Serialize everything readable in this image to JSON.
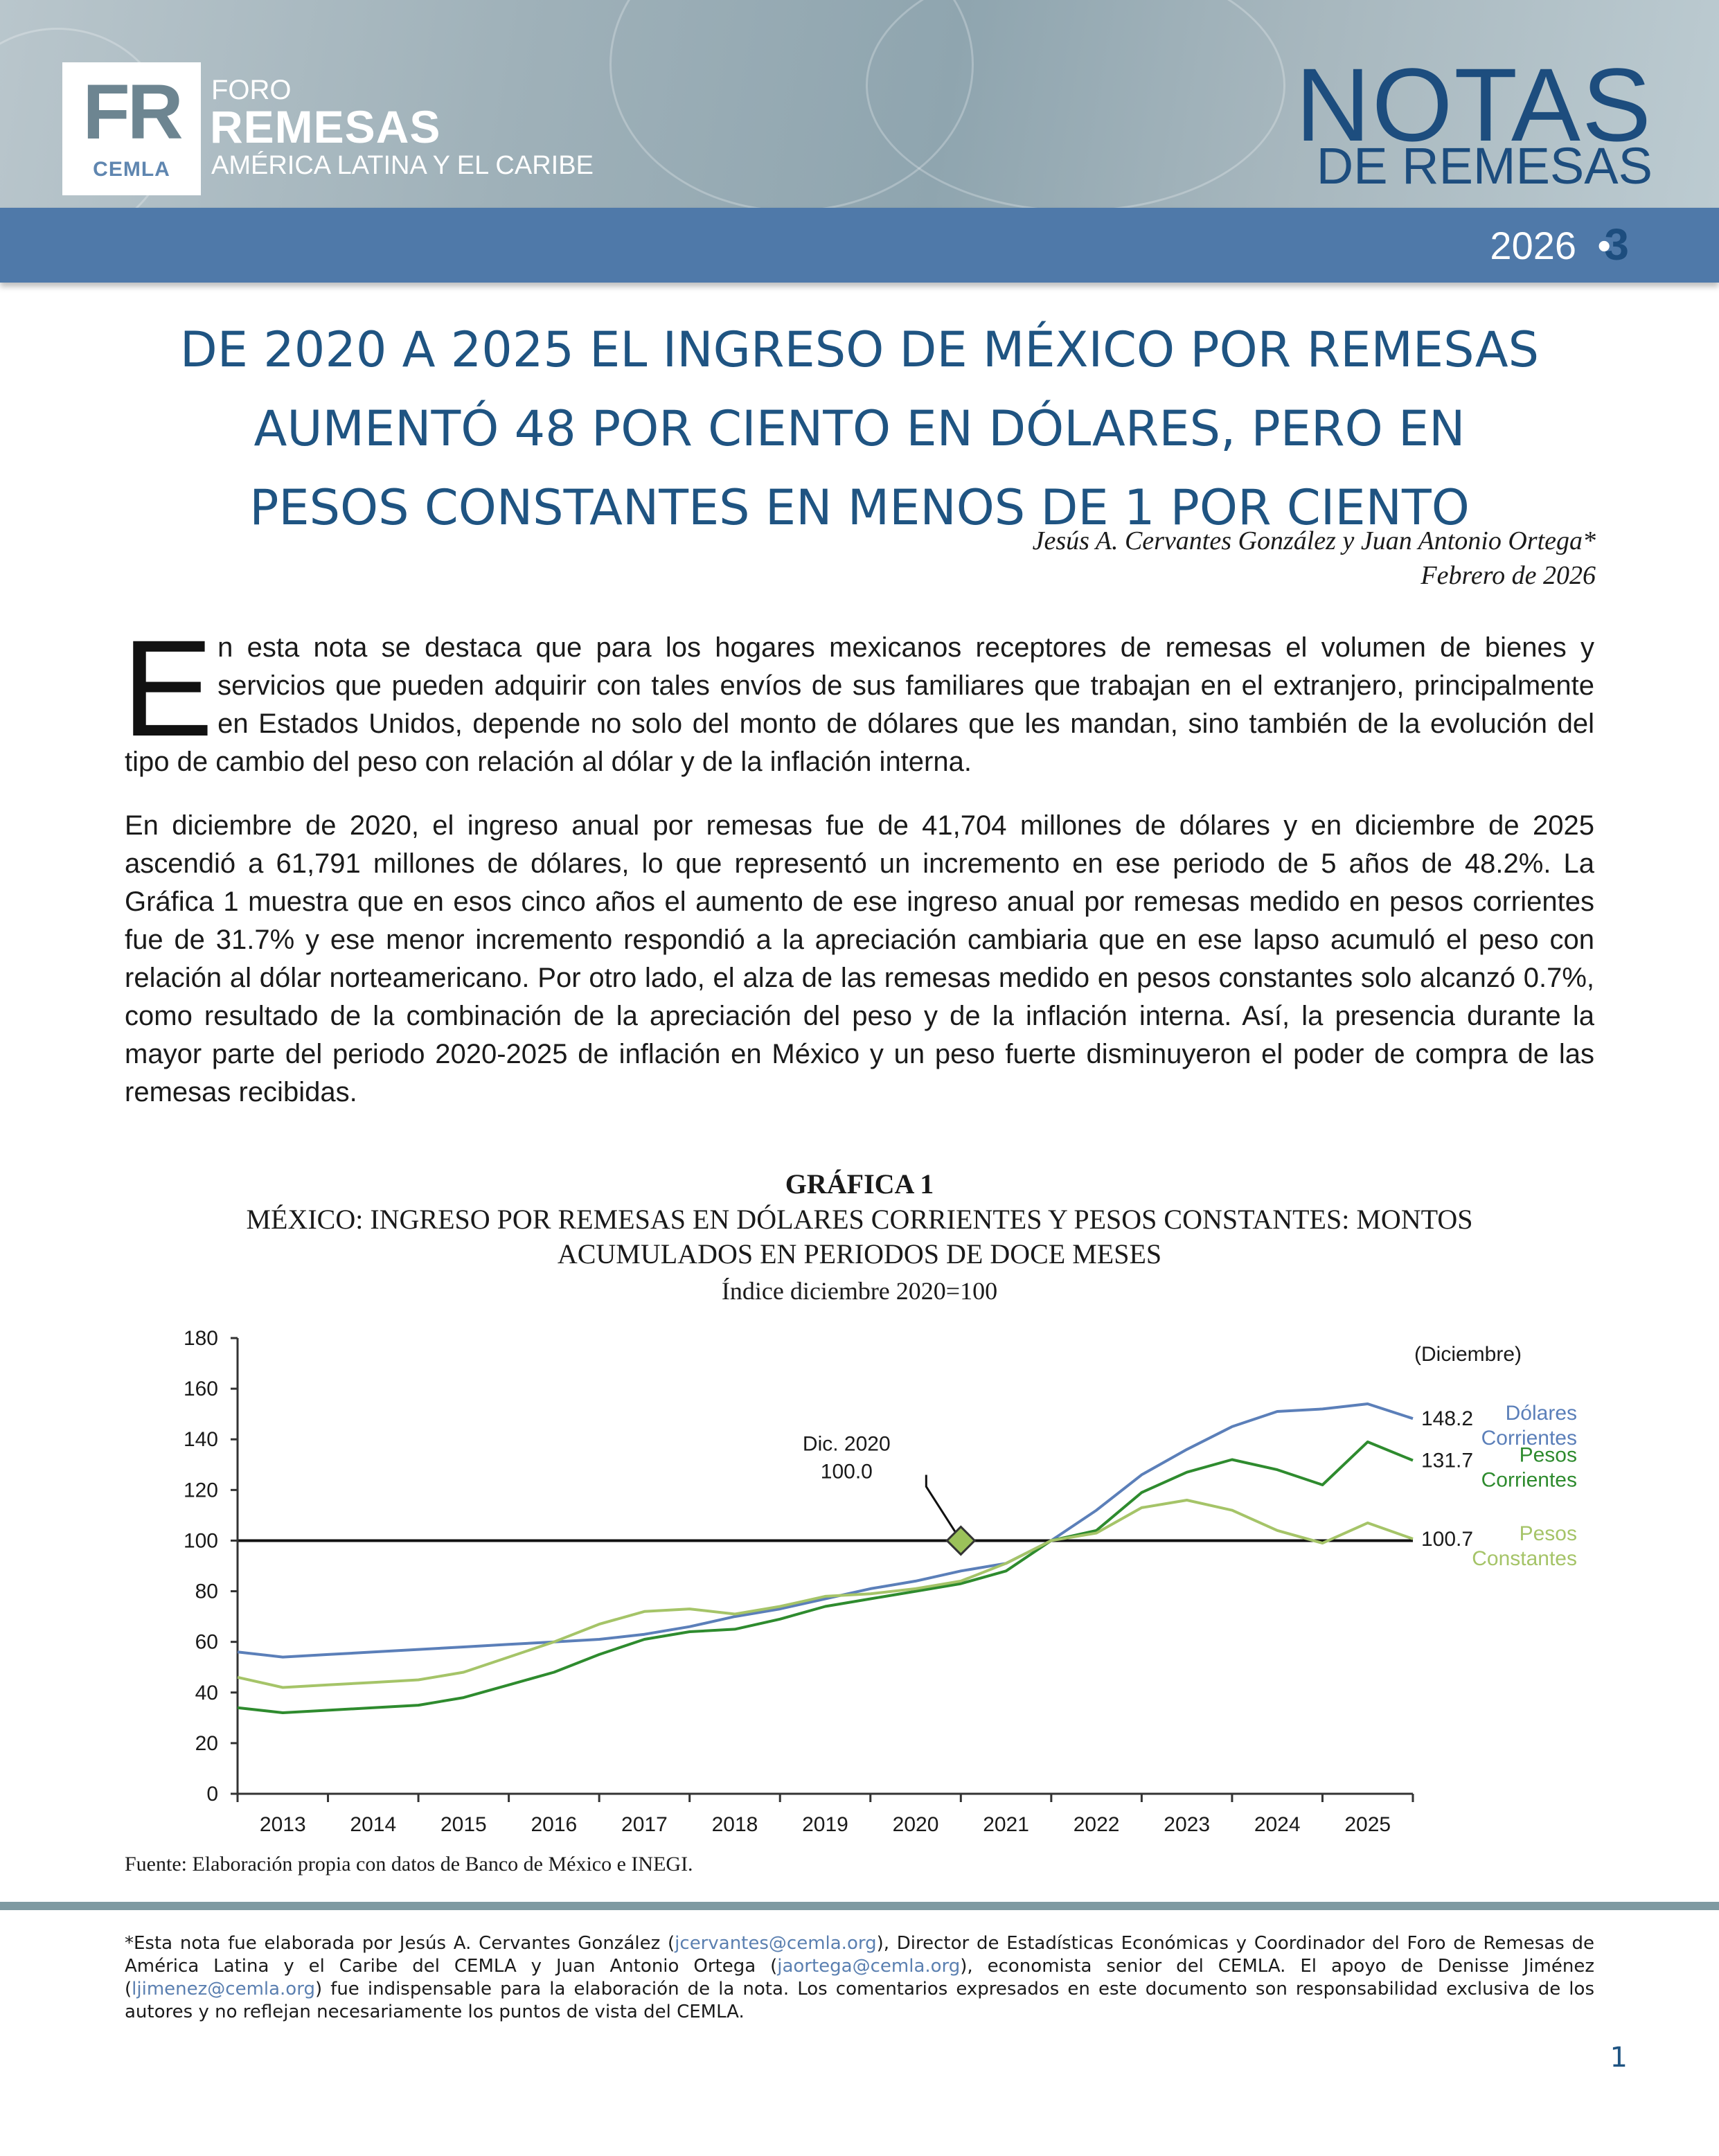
{
  "header": {
    "logo_fr": "FR",
    "logo_cemla": "CEMLA",
    "logo_foro": "FORO",
    "logo_remesas": "REMESAS",
    "logo_region": "AMÉRICA LATINA Y EL CARIBE",
    "series_title": "NOTAS",
    "series_subtitle": "DE REMESAS",
    "issue_year": "2026",
    "issue_bullet": "•",
    "issue_number": "3"
  },
  "article": {
    "title_lines": [
      "DE 2020 A 2025 EL INGRESO DE MÉXICO POR REMESAS",
      "AUMENTÓ 48 POR CIENTO EN DÓLARES, PERO EN",
      "PESOS CONSTANTES EN MENOS DE 1 POR CIENTO"
    ],
    "authors": "Jesús A. Cervantes González y Juan Antonio Ortega*",
    "date": "Febrero de 2026",
    "para1_dropcap": "E",
    "para1_rest": "n esta nota se destaca que para los hogares mexicanos receptores de remesas el volumen de bienes y servicios que pueden adquirir con tales envíos de sus familiares que trabajan en el extranjero, principalmente en Estados Unidos, depende no solo del monto de dólares que les mandan, sino también de la evolución del tipo de cambio del peso con relación al dólar y de la inflación interna.",
    "para2": "En diciembre de 2020, el ingreso anual por remesas fue de 41,704 millones de dólares y en diciembre de 2025 ascendió a 61,791 millones de dólares, lo que representó un incremento en ese periodo de 5 años de 48.2%. La Gráfica 1 muestra que en esos cinco años el aumento de ese ingreso anual por remesas medido en pesos corrientes fue de 31.7% y ese menor incremento respondió a la apreciación cambiaria que en ese lapso acumuló el peso con relación al dólar norteamericano. Por otro lado, el alza de las remesas medido en pesos constantes solo alcanzó 0.7%, como resultado de la combinación de la apreciación del peso y de la inflación interna. Así, la presencia durante la mayor parte del periodo 2020-2025 de inflación en México y un peso fuerte disminuyeron el poder de compra de las remesas recibidas."
  },
  "chart_label": "GRÁFICA 1",
  "chart_title": "MÉXICO: INGRESO POR REMESAS EN DÓLARES CORRIENTES Y PESOS CONSTANTES: MONTOS ACUMULADOS EN PERIODOS DE DOCE MESES",
  "chart_subtitle": "Índice diciembre 2020=100",
  "chart_data": {
    "type": "line",
    "x": [
      2012.0,
      2012.5,
      2013.0,
      2013.5,
      2014.0,
      2014.5,
      2015.0,
      2015.5,
      2016.0,
      2016.5,
      2017.0,
      2017.5,
      2018.0,
      2018.5,
      2019.0,
      2019.5,
      2020.0,
      2020.5,
      2021.0,
      2021.5,
      2022.0,
      2022.5,
      2023.0,
      2023.5,
      2024.0,
      2024.5,
      2025.0
    ],
    "series": [
      {
        "name": "Dólares Corrientes",
        "color": "#5b7fb9",
        "values": [
          56,
          54,
          55,
          56,
          57,
          58,
          59,
          60,
          61,
          63,
          66,
          70,
          73,
          77,
          81,
          84,
          88,
          91,
          100,
          112,
          126,
          136,
          145,
          151,
          152,
          154,
          148.2
        ]
      },
      {
        "name": "Pesos Corrientes",
        "color": "#2e8b2e",
        "values": [
          34,
          32,
          33,
          34,
          35,
          38,
          43,
          48,
          55,
          61,
          64,
          65,
          69,
          74,
          77,
          80,
          83,
          88,
          100,
          104,
          119,
          127,
          132,
          128,
          122,
          139,
          131.7
        ]
      },
      {
        "name": "Pesos Constantes",
        "color": "#a5c468",
        "values": [
          46,
          42,
          43,
          44,
          45,
          48,
          54,
          60,
          67,
          72,
          73,
          71,
          74,
          78,
          79,
          81,
          84,
          91,
          100,
          103,
          113,
          116,
          112,
          104,
          99,
          107,
          100.7
        ]
      }
    ],
    "x_tick_labels": [
      "2013",
      "2014",
      "2015",
      "2016",
      "2017",
      "2018",
      "2019",
      "2020",
      "2021",
      "2022",
      "2023",
      "2024",
      "2025"
    ],
    "y_ticks": [
      0,
      20,
      40,
      60,
      80,
      100,
      120,
      140,
      160,
      180
    ],
    "ylim": [
      0,
      180
    ],
    "reference_line": 100,
    "annotation": {
      "label_line1": "Dic. 2020",
      "label_line2": "100.0",
      "x": 2020.0,
      "y": 100
    },
    "end_label_header": "(Diciembre)",
    "end_values": [
      "148.2",
      "131.7",
      "100.7"
    ],
    "legend_labels": [
      [
        "Dólares",
        "Corrientes"
      ],
      [
        "Pesos",
        "Corrientes"
      ],
      [
        "Pesos",
        "Constantes"
      ]
    ],
    "grid": false
  },
  "source_note": "Fuente: Elaboración propia con datos de Banco de México e INEGI.",
  "footnote": {
    "t1": "*Esta nota fue elaborada por Jesús A. Cervantes González (",
    "email1": "jcervantes@cemla.org",
    "t2": "), Director de Estadísticas Económicas y Coordinador del Foro de Remesas de América Latina y el Caribe del CEMLA y Juan Antonio Ortega (",
    "email2": "jaortega@cemla.org",
    "t3": "), economista senior del CEMLA. El apoyo de Denisse Jiménez (",
    "email3": "ljimenez@cemla.org",
    "t4": ") fue indispensable para la elaboración de la nota. Los comentarios expresados en este documento son responsabilidad exclusiva de los autores y no reflejan necesariamente los puntos de vista del CEMLA."
  },
  "page_number": "1"
}
